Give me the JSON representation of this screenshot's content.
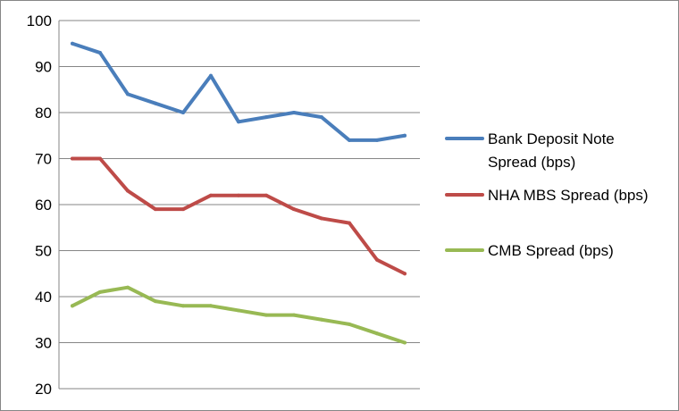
{
  "chart_data": {
    "type": "line",
    "title": "",
    "xlabel": "",
    "ylabel": "",
    "ylim": [
      20,
      100
    ],
    "yticks": [
      "20",
      "30",
      "40",
      "50",
      "60",
      "70",
      "80",
      "90",
      "100"
    ],
    "x": [
      1,
      2,
      3,
      4,
      5,
      6,
      7,
      8,
      9,
      10,
      11,
      12,
      13
    ],
    "grid": "horizontal",
    "legend_position": "right",
    "series": [
      {
        "name": "Bank Deposit Note Spread (bps)",
        "legend_lines": [
          "Bank Deposit Note",
          "Spread (bps)"
        ],
        "color": "#4a7ebb",
        "values": [
          95,
          93,
          84,
          82,
          80,
          88,
          78,
          79,
          80,
          79,
          74,
          74,
          75
        ]
      },
      {
        "name": "NHA MBS Spread (bps)",
        "legend_lines": [
          "NHA MBS Spread (bps)"
        ],
        "color": "#be4b48",
        "values": [
          70,
          70,
          63,
          59,
          59,
          62,
          62,
          62,
          59,
          57,
          56,
          48,
          45
        ]
      },
      {
        "name": "CMB Spread (bps)",
        "legend_lines": [
          "CMB Spread (bps)"
        ],
        "color": "#98b954",
        "values": [
          38,
          41,
          42,
          39,
          38,
          38,
          37,
          36,
          36,
          35,
          34,
          32,
          30
        ]
      }
    ]
  }
}
